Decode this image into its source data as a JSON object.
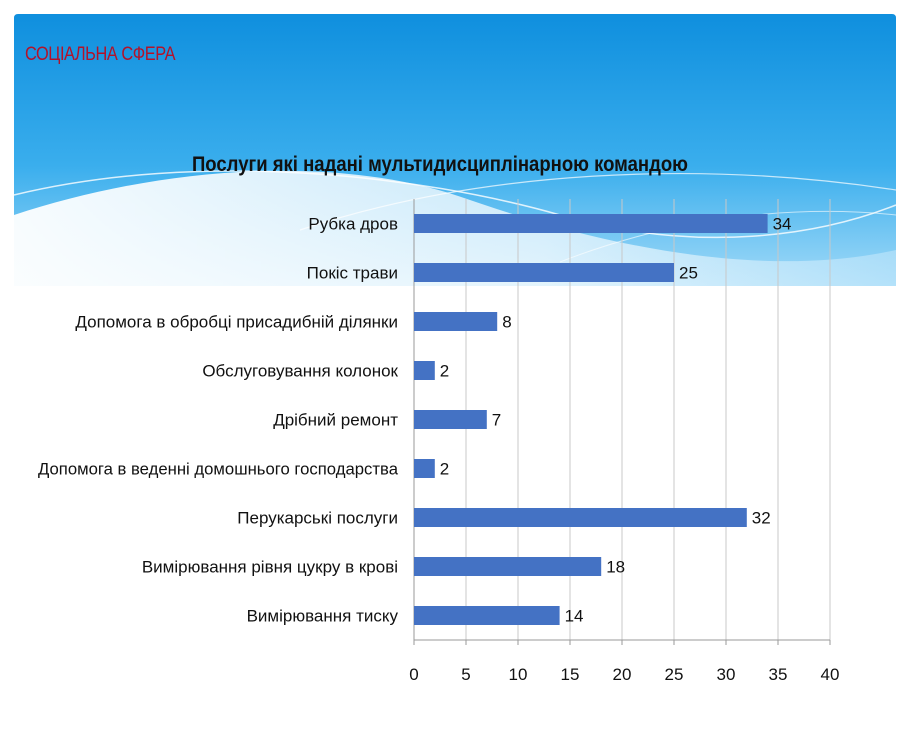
{
  "header": {
    "section_title": "СОЦІАЛЬНА СФЕРА"
  },
  "colors": {
    "bar": "#4472c4",
    "header_text": "#b3122a",
    "banner_top": "#1193e0",
    "banner_light": "#8fd0f6"
  },
  "chart_data": {
    "type": "bar",
    "orientation": "horizontal",
    "title": "Послуги які надані мультидисциплінарною командою",
    "xlabel": "",
    "ylabel": "",
    "categories": [
      "Рубка дров",
      "Покіс трави",
      "Допомога в обробці присадибній ділянки",
      "Обслуговування колонок",
      "Дрібний ремонт",
      "Допомога в веденні домошнього господарства",
      "Перукарські послуги",
      "Вимірювання рівня цукру в крові",
      "Вимірювання тиску"
    ],
    "values": [
      34,
      25,
      8,
      2,
      7,
      2,
      32,
      18,
      14
    ],
    "xlim": [
      0,
      40
    ],
    "xticks": [
      0,
      5,
      10,
      15,
      20,
      25,
      30,
      35,
      40
    ],
    "grid": true,
    "legend": "none",
    "data_labels": true
  }
}
